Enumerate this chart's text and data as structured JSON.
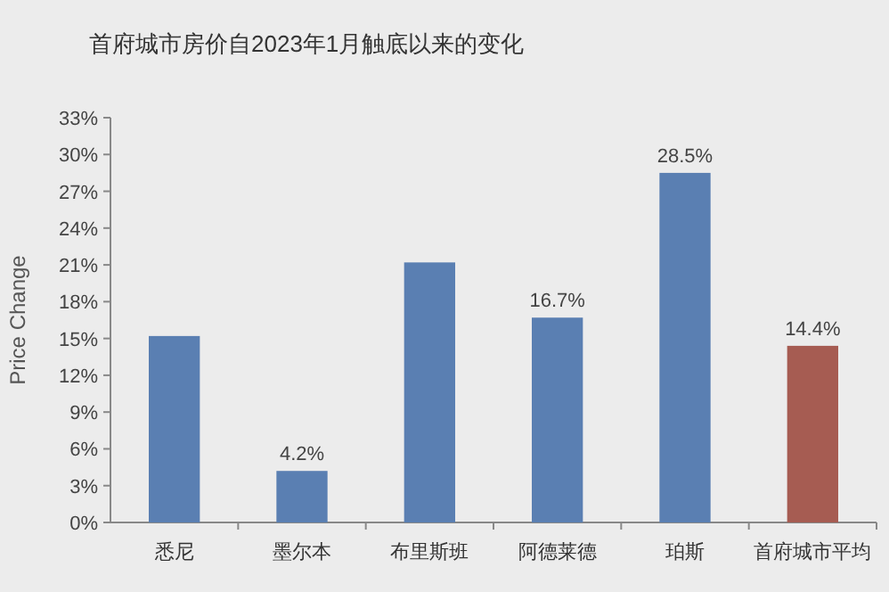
{
  "chart_data": {
    "type": "bar",
    "title": "首府城市房价自2023年1月触底以来的变化",
    "ylabel": "Price Change",
    "categories": [
      "悉尼",
      "墨尔本",
      "布里斯班",
      "阿德莱德",
      "珀斯",
      "首府城市平均"
    ],
    "values": [
      15.2,
      4.2,
      21.2,
      16.7,
      28.5,
      14.4
    ],
    "colors": [
      "#5a7fb2",
      "#5a7fb2",
      "#5a7fb2",
      "#5a7fb2",
      "#5a7fb2",
      "#a65c52"
    ],
    "value_labels": [
      null,
      "4.2%",
      null,
      "16.7%",
      "28.5%",
      "14.4%"
    ],
    "ylim": [
      0,
      33
    ],
    "yticks": [
      {
        "value": 0,
        "label": "0%"
      },
      {
        "value": 3,
        "label": "3%"
      },
      {
        "value": 6,
        "label": "6%"
      },
      {
        "value": 9,
        "label": "9%"
      },
      {
        "value": 12,
        "label": "12%"
      },
      {
        "value": 15,
        "label": "15%"
      },
      {
        "value": 18,
        "label": "18%"
      },
      {
        "value": 21,
        "label": "21%"
      },
      {
        "value": 24,
        "label": "24%"
      },
      {
        "value": 27,
        "label": "27%"
      },
      {
        "value": 30,
        "label": "30%"
      },
      {
        "value": 33,
        "label": "33%"
      }
    ],
    "grid": false
  }
}
